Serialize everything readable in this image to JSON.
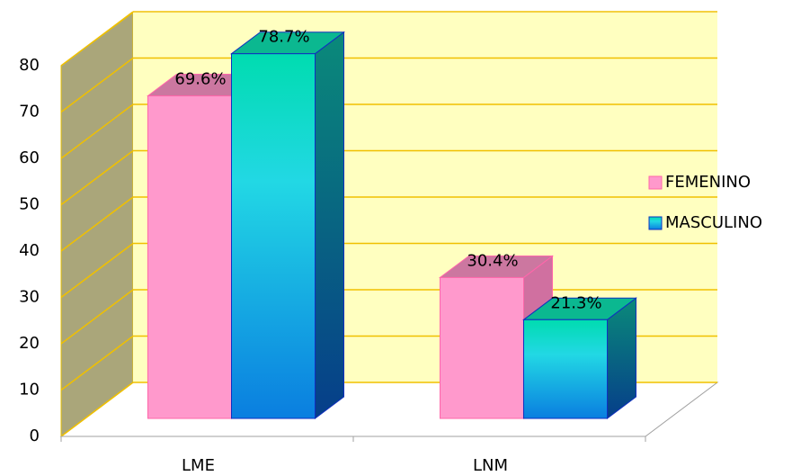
{
  "chart_data": {
    "type": "bar3d",
    "categories": [
      "LME",
      "LNM"
    ],
    "series": [
      {
        "name": "FEMENINO",
        "color": "#ff99cc",
        "values": [
          69.6,
          30.4
        ],
        "value_labels": [
          "69.6%",
          "30.4%"
        ]
      },
      {
        "name": "MASCULINO",
        "color": "#1ab4e6",
        "values": [
          78.7,
          21.3
        ],
        "value_labels": [
          "78.7%",
          "21.3%"
        ]
      }
    ],
    "ylim": [
      0,
      80
    ],
    "yticks": [
      0,
      10,
      20,
      30,
      40,
      50,
      60,
      70,
      80
    ],
    "grid": true,
    "legend": "right"
  }
}
